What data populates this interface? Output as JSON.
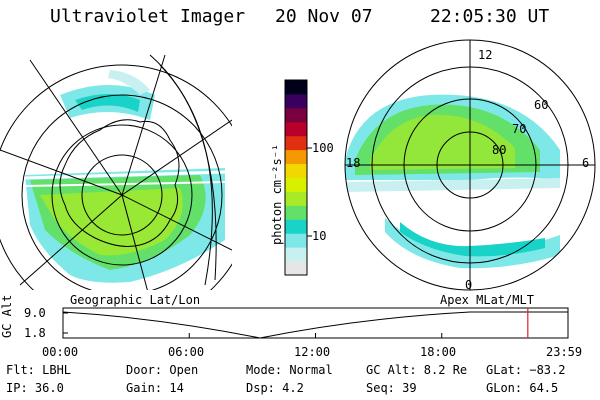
{
  "header": {
    "instrument": "Ultraviolet Imager",
    "date": "20 Nov 07",
    "time": "22:05:30 UT"
  },
  "left_panel": {
    "caption": "Geographic Lat/Lon"
  },
  "right_panel": {
    "caption": "Apex  MLat/MLT",
    "mlt_labels": {
      "top": "12",
      "left": "18",
      "right": "6",
      "bottom": "0"
    },
    "lat_labels": [
      "60",
      "70",
      "80"
    ]
  },
  "colorbar": {
    "unit_label": "photon cm⁻²s⁻¹",
    "ticks": [
      "100",
      "10"
    ],
    "colors": [
      "#e6e6e6",
      "#c8f0f0",
      "#7ee8e8",
      "#19d2c8",
      "#62e06a",
      "#a8ea28",
      "#d8f000",
      "#f0d800",
      "#f49a00",
      "#e03010",
      "#b8002a",
      "#7a0040",
      "#3a0060",
      "#000018"
    ]
  },
  "timeline": {
    "ylabel": "GC Alt",
    "yticks": [
      "9.0",
      "1.8"
    ],
    "xticks": [
      "00:00",
      "06:00",
      "12:00",
      "18:00",
      "23:59"
    ],
    "current_marker_hour": 22.09
  },
  "footer": {
    "flt": "Flt: LBHL",
    "ip": "IP: 36.0",
    "door": "Door: Open",
    "gain": "Gain: 14",
    "mode": "Mode: Normal",
    "dsp": "Dsp:    4.2",
    "gcalt": "GC Alt: 8.2 Re",
    "seq": "Seq: 39",
    "glat": "GLat: −83.2",
    "glon": "GLon:  64.5"
  }
}
